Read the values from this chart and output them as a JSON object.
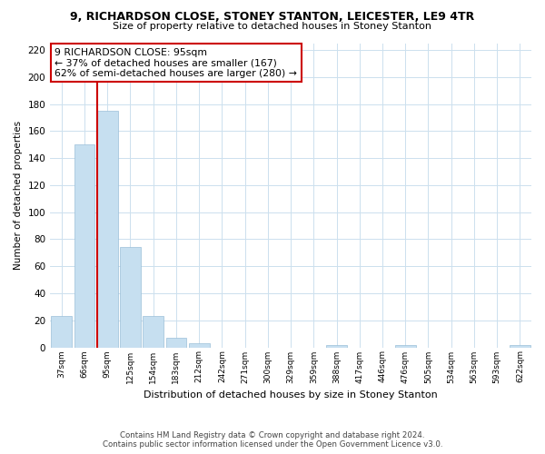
{
  "title": "9, RICHARDSON CLOSE, STONEY STANTON, LEICESTER, LE9 4TR",
  "subtitle": "Size of property relative to detached houses in Stoney Stanton",
  "xlabel": "Distribution of detached houses by size in Stoney Stanton",
  "ylabel": "Number of detached properties",
  "bin_labels": [
    "37sqm",
    "66sqm",
    "95sqm",
    "125sqm",
    "154sqm",
    "183sqm",
    "212sqm",
    "242sqm",
    "271sqm",
    "300sqm",
    "329sqm",
    "359sqm",
    "388sqm",
    "417sqm",
    "446sqm",
    "476sqm",
    "505sqm",
    "534sqm",
    "563sqm",
    "593sqm",
    "622sqm"
  ],
  "bar_heights": [
    23,
    150,
    175,
    74,
    23,
    7,
    3,
    0,
    0,
    0,
    0,
    0,
    2,
    0,
    0,
    2,
    0,
    0,
    0,
    0,
    2
  ],
  "bar_color": "#c6dff0",
  "bar_edge_color": "#9bbfd8",
  "grid_color": "#cce0ee",
  "property_line_index": 2,
  "annotation_title": "9 RICHARDSON CLOSE: 95sqm",
  "annotation_line1": "← 37% of detached houses are smaller (167)",
  "annotation_line2": "62% of semi-detached houses are larger (280) →",
  "annotation_box_color": "#ffffff",
  "annotation_box_edge": "#cc0000",
  "property_line_color": "#cc0000",
  "ylim": [
    0,
    225
  ],
  "yticks": [
    0,
    20,
    40,
    60,
    80,
    100,
    120,
    140,
    160,
    180,
    200,
    220
  ],
  "footer_line1": "Contains HM Land Registry data © Crown copyright and database right 2024.",
  "footer_line2": "Contains public sector information licensed under the Open Government Licence v3.0."
}
